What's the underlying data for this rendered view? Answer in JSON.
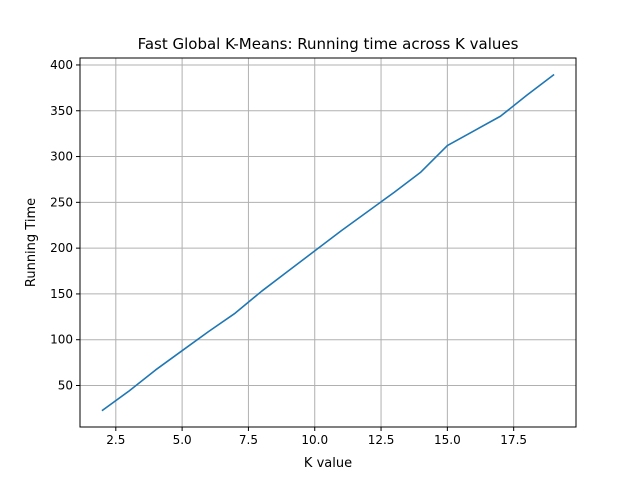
{
  "chart_data": {
    "type": "line",
    "title": "Fast Global K-Means: Running time across K values",
    "xlabel": "K value",
    "ylabel": "Running Time",
    "xlim": [
      1.15,
      19.85
    ],
    "ylim": [
      4.7,
      407.6
    ],
    "xticks": [
      2.5,
      5.0,
      7.5,
      10.0,
      12.5,
      15.0,
      17.5
    ],
    "xtick_labels": [
      "2.5",
      "5.0",
      "7.5",
      "10.0",
      "12.5",
      "15.0",
      "17.5"
    ],
    "yticks": [
      50,
      100,
      150,
      200,
      250,
      300,
      350,
      400
    ],
    "ytick_labels": [
      "50",
      "100",
      "150",
      "200",
      "250",
      "300",
      "350",
      "400"
    ],
    "grid": true,
    "series": [
      {
        "color": "#1f77b4",
        "x": [
          2,
          3,
          4,
          5,
          6,
          7,
          8,
          9,
          10,
          11,
          12,
          13,
          14,
          15,
          16,
          17,
          18,
          19
        ],
        "y": [
          23,
          44,
          67,
          88,
          109,
          129,
          153,
          175,
          197,
          219,
          240,
          261,
          283,
          312,
          328,
          344,
          367,
          389
        ]
      }
    ]
  }
}
